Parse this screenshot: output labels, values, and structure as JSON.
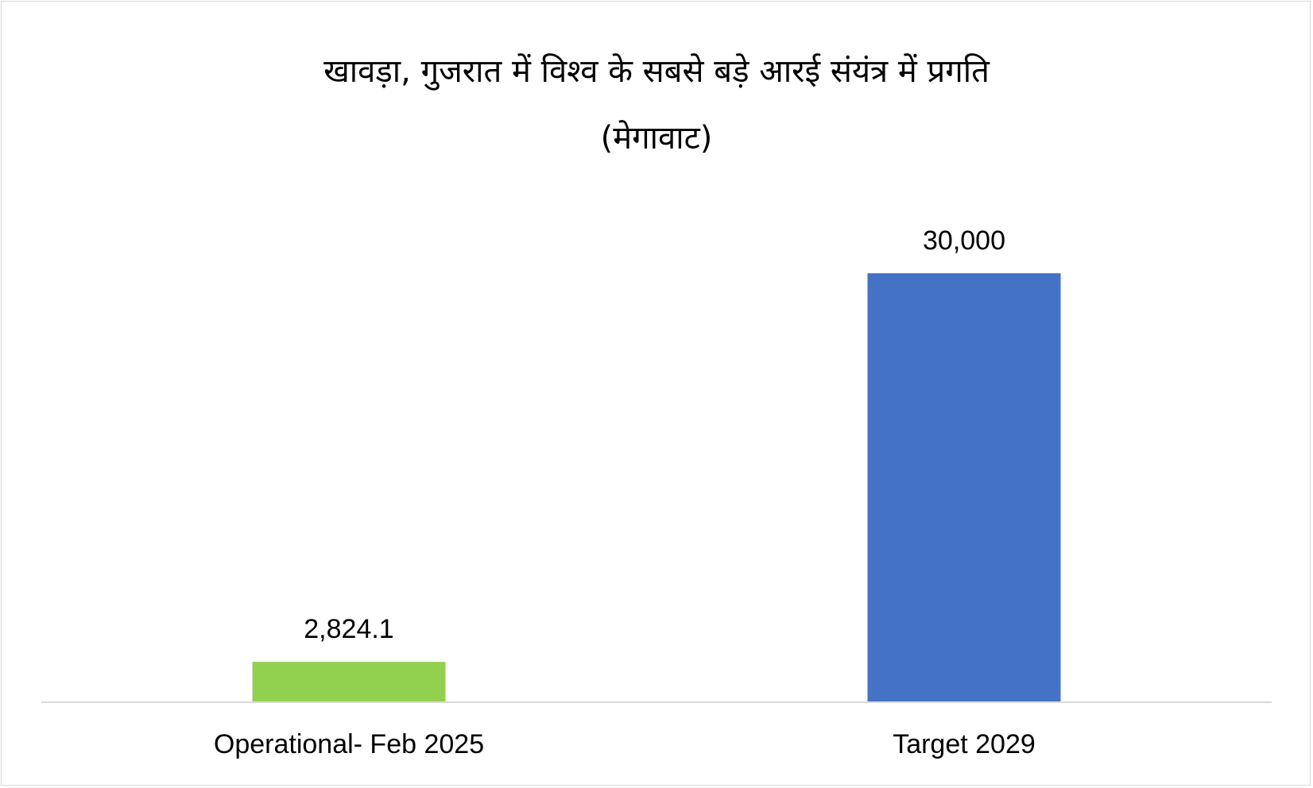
{
  "chart_data": {
    "type": "bar",
    "title": "खावड़ा, गुजरात में विश्व के सबसे बड़े आरई संयंत्र में प्रगति",
    "subtitle": "(मेगावाट)",
    "categories": [
      "Operational- Feb 2025",
      "Target 2029"
    ],
    "values": [
      2824.1,
      30000
    ],
    "value_labels": [
      "2,824.1",
      "30,000"
    ],
    "bar_colors": [
      "#92d050",
      "#4472c4"
    ],
    "ylim": [
      0,
      30000
    ],
    "grid": false,
    "legend": "none"
  }
}
